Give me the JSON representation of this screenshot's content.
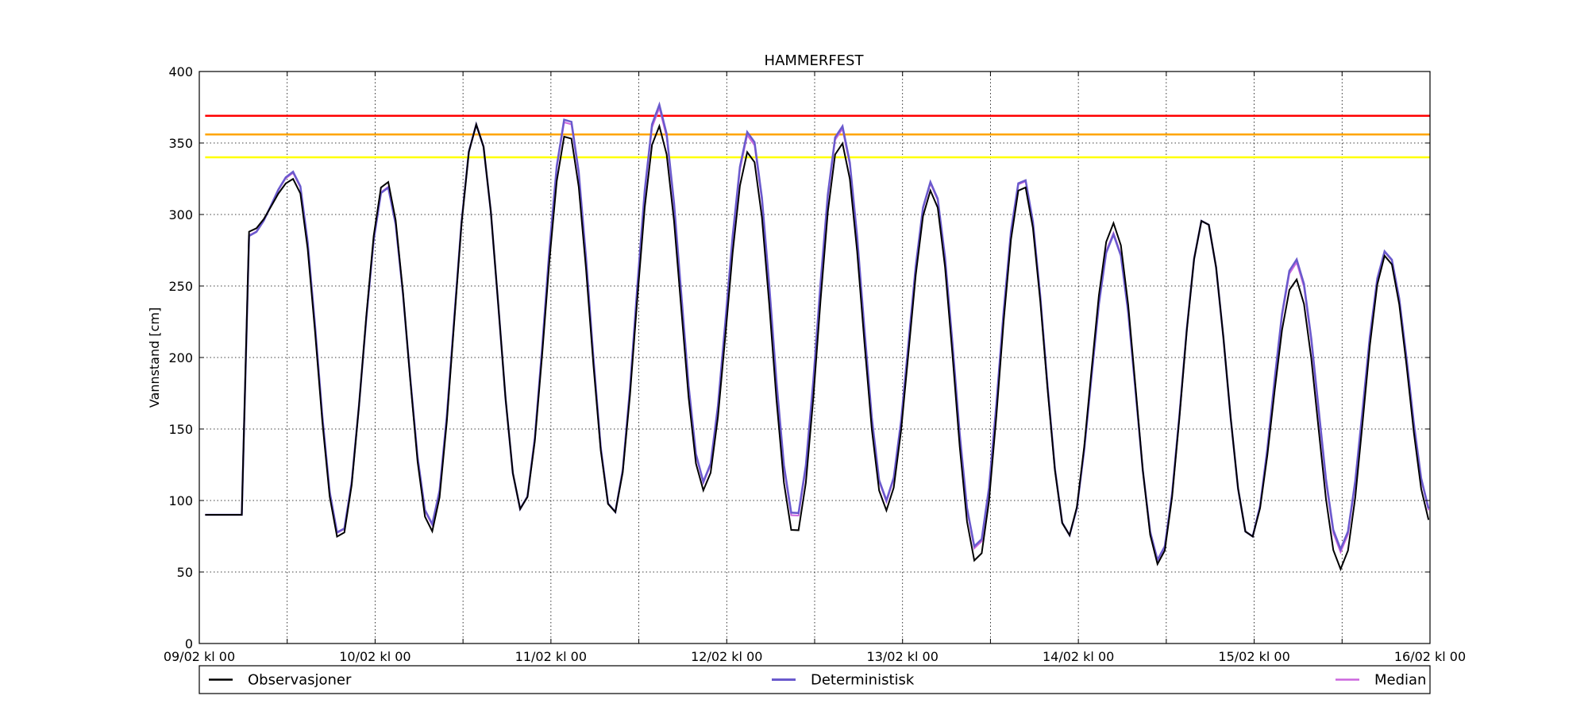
{
  "chart_data": {
    "type": "line",
    "title": "HAMMERFEST",
    "xlabel": "",
    "ylabel": "Vannstand [cm]",
    "ylim": [
      0,
      400
    ],
    "xlim_hours": [
      0,
      168
    ],
    "yticks": [
      0,
      50,
      100,
      150,
      200,
      250,
      300,
      350,
      400
    ],
    "xtick_labels": [
      "09/02 kl 00",
      "10/02 kl 00",
      "11/02 kl 00",
      "12/02 kl 00",
      "13/02 kl 00",
      "14/02 kl 00",
      "15/02 kl 00",
      "16/02 kl 00"
    ],
    "grid": true,
    "legend_position": "bottom, below plot",
    "thresholds": [
      {
        "value": 369,
        "color": "#ff0000"
      },
      {
        "value": 356,
        "color": "#ffa500"
      },
      {
        "value": 340,
        "color": "#ffff00"
      }
    ],
    "tide": {
      "period_h": 12.42,
      "first_peak_h": 13.0,
      "high_levels": [
        325,
        325,
        363,
        358,
        362,
        345,
        351,
        317,
        322,
        294,
        298,
        255,
        272
      ],
      "low_levels": [
        288,
        72,
        78,
        93,
        90,
        107,
        75,
        93,
        56,
        75,
        55,
        73,
        52,
        84,
        90
      ],
      "det_high_offsets": [
        5,
        -4,
        0,
        12,
        15,
        14,
        12,
        6,
        5,
        -8,
        0,
        14,
        3
      ],
      "det_low_offsets": [
        -3,
        3,
        5,
        0,
        0,
        6,
        12,
        7,
        10,
        0,
        3,
        0,
        14,
        8,
        0
      ]
    },
    "series": [
      {
        "name": "Observasjoner",
        "color": "#000000",
        "width": 2
      },
      {
        "name": "Deterministisk",
        "color": "#6a5acd",
        "width": 2.5
      },
      {
        "name": "Median",
        "color": "#cc66dd",
        "width": 2
      }
    ]
  }
}
